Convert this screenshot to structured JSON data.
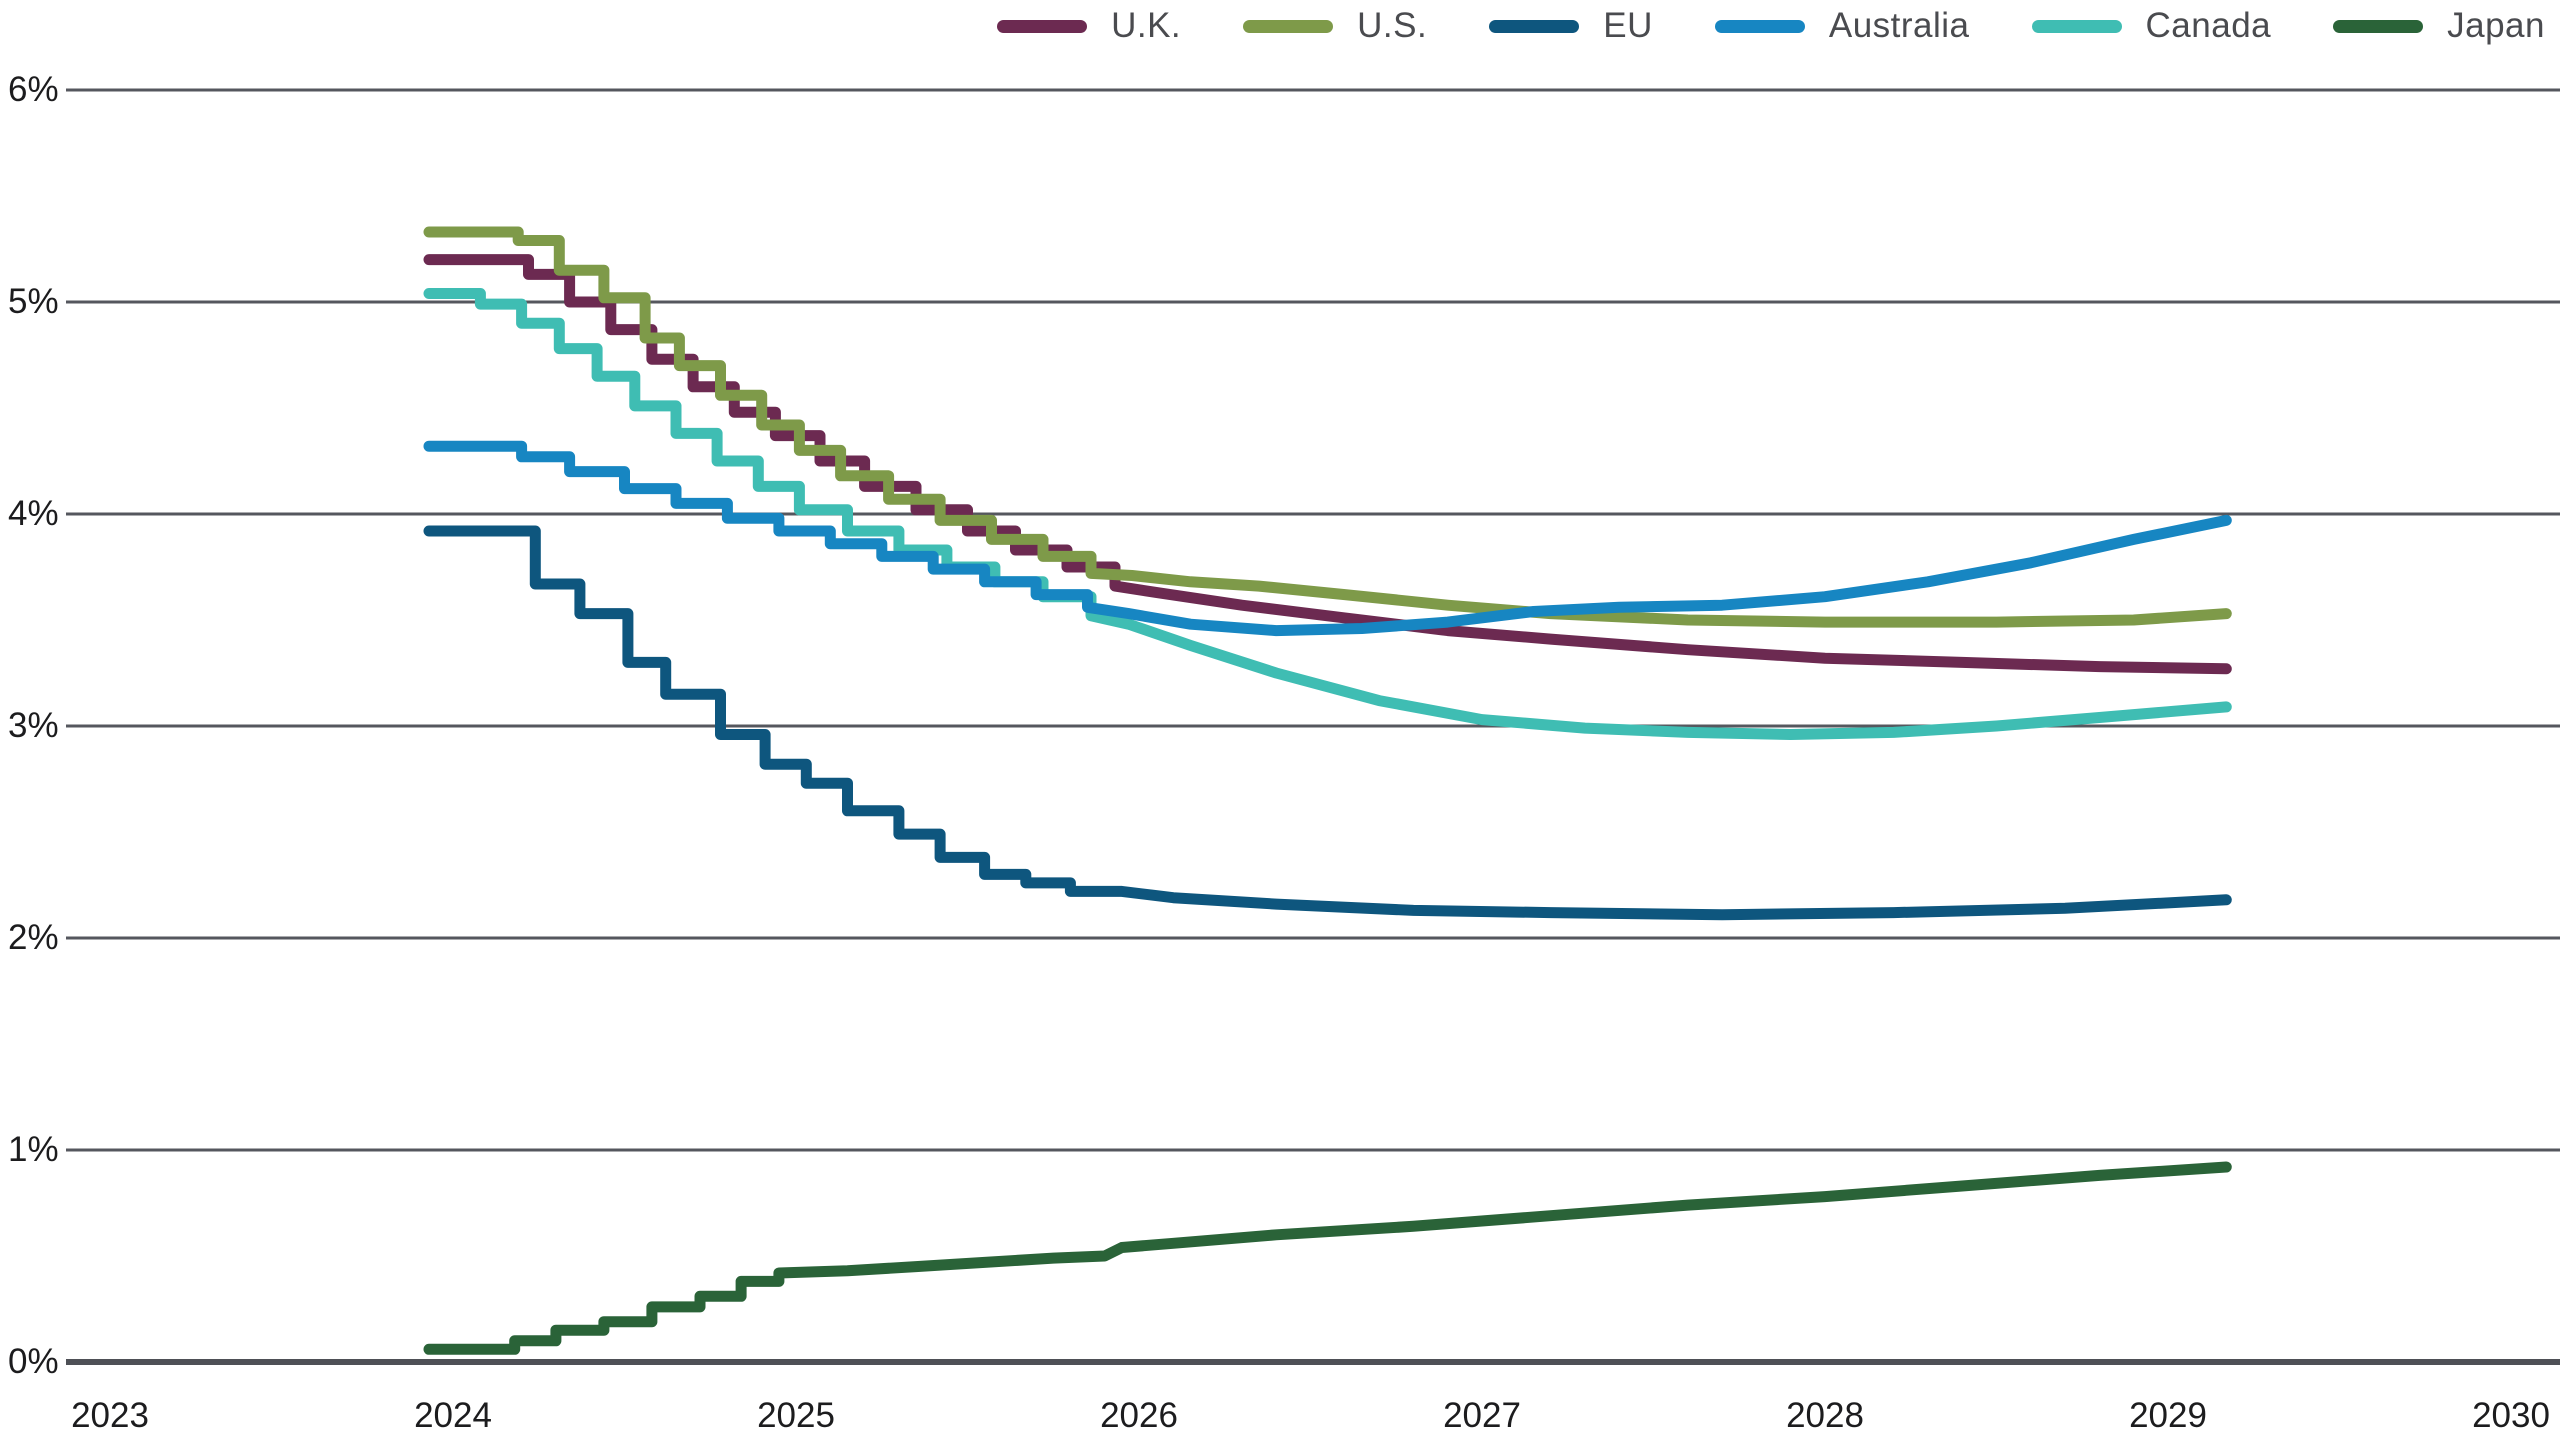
{
  "legend": {
    "items": [
      {
        "label": "U.K.",
        "color": "#6C2A51"
      },
      {
        "label": "U.S.",
        "color": "#7E9A49"
      },
      {
        "label": "EU",
        "color": "#0E567E"
      },
      {
        "label": "Australia",
        "color": "#1786C2"
      },
      {
        "label": "Canada",
        "color": "#3FBDB3"
      },
      {
        "label": "Japan",
        "color": "#2A6338"
      }
    ]
  },
  "y_axis": {
    "unit": "%",
    "ticks": [
      {
        "label": "6%",
        "value": 6
      },
      {
        "label": "5%",
        "value": 5
      },
      {
        "label": "4%",
        "value": 4
      },
      {
        "label": "3%",
        "value": 3
      },
      {
        "label": "2%",
        "value": 2
      },
      {
        "label": "1%",
        "value": 1
      },
      {
        "label": "0%",
        "value": 0
      }
    ]
  },
  "x_axis": {
    "ticks": [
      {
        "label": "2023",
        "year": 2023
      },
      {
        "label": "2024",
        "year": 2024
      },
      {
        "label": "2025",
        "year": 2025
      },
      {
        "label": "2026",
        "year": 2026
      },
      {
        "label": "2027",
        "year": 2027
      },
      {
        "label": "2028",
        "year": 2028
      },
      {
        "label": "2029",
        "year": 2029
      },
      {
        "label": "2030",
        "year": 2030
      }
    ]
  },
  "chart_data": {
    "type": "line",
    "title": "",
    "xlabel": "",
    "ylabel": "",
    "x_range": [
      2023,
      2030.14
    ],
    "ylim": [
      0,
      6
    ],
    "y_unit": "%",
    "grid": "horizontal",
    "legend_position": "top-right",
    "line_style_note": "stepped forward curves through ~2026, smooth thereafter",
    "grid_color": "#55575E",
    "axis_line_color": "#4E5056",
    "series": [
      {
        "name": "U.K.",
        "color": "#6C2A51",
        "points": [
          [
            2023.93,
            5.2
          ],
          [
            2024.22,
            5.2
          ],
          [
            2024.22,
            5.13
          ],
          [
            2024.34,
            5.13
          ],
          [
            2024.34,
            5.0
          ],
          [
            2024.46,
            5.0
          ],
          [
            2024.46,
            4.87
          ],
          [
            2024.58,
            4.87
          ],
          [
            2024.58,
            4.73
          ],
          [
            2024.7,
            4.73
          ],
          [
            2024.7,
            4.6
          ],
          [
            2024.82,
            4.6
          ],
          [
            2024.82,
            4.48
          ],
          [
            2024.94,
            4.48
          ],
          [
            2024.94,
            4.37
          ],
          [
            2025.07,
            4.37
          ],
          [
            2025.07,
            4.25
          ],
          [
            2025.2,
            4.25
          ],
          [
            2025.2,
            4.13
          ],
          [
            2025.35,
            4.13
          ],
          [
            2025.35,
            4.02
          ],
          [
            2025.5,
            4.02
          ],
          [
            2025.5,
            3.92
          ],
          [
            2025.64,
            3.92
          ],
          [
            2025.64,
            3.83
          ],
          [
            2025.79,
            3.83
          ],
          [
            2025.79,
            3.75
          ],
          [
            2025.93,
            3.75
          ],
          [
            2025.93,
            3.66
          ],
          [
            2026.05,
            3.63
          ],
          [
            2026.3,
            3.57
          ],
          [
            2026.6,
            3.51
          ],
          [
            2026.9,
            3.45
          ],
          [
            2027.2,
            3.41
          ],
          [
            2027.6,
            3.36
          ],
          [
            2028.0,
            3.32
          ],
          [
            2028.4,
            3.3
          ],
          [
            2028.8,
            3.28
          ],
          [
            2029.17,
            3.27
          ]
        ]
      },
      {
        "name": "U.S.",
        "color": "#7E9A49",
        "points": [
          [
            2023.93,
            5.33
          ],
          [
            2024.19,
            5.33
          ],
          [
            2024.19,
            5.29
          ],
          [
            2024.31,
            5.29
          ],
          [
            2024.31,
            5.15
          ],
          [
            2024.44,
            5.15
          ],
          [
            2024.44,
            5.02
          ],
          [
            2024.56,
            5.02
          ],
          [
            2024.56,
            4.83
          ],
          [
            2024.66,
            4.83
          ],
          [
            2024.66,
            4.7
          ],
          [
            2024.78,
            4.7
          ],
          [
            2024.78,
            4.56
          ],
          [
            2024.9,
            4.56
          ],
          [
            2024.9,
            4.42
          ],
          [
            2025.01,
            4.42
          ],
          [
            2025.01,
            4.3
          ],
          [
            2025.13,
            4.3
          ],
          [
            2025.13,
            4.18
          ],
          [
            2025.27,
            4.18
          ],
          [
            2025.27,
            4.07
          ],
          [
            2025.42,
            4.07
          ],
          [
            2025.42,
            3.97
          ],
          [
            2025.57,
            3.97
          ],
          [
            2025.57,
            3.88
          ],
          [
            2025.72,
            3.88
          ],
          [
            2025.72,
            3.8
          ],
          [
            2025.86,
            3.8
          ],
          [
            2025.86,
            3.72
          ],
          [
            2025.98,
            3.71
          ],
          [
            2026.15,
            3.68
          ],
          [
            2026.35,
            3.66
          ],
          [
            2026.6,
            3.62
          ],
          [
            2026.9,
            3.57
          ],
          [
            2027.2,
            3.53
          ],
          [
            2027.6,
            3.5
          ],
          [
            2028.0,
            3.49
          ],
          [
            2028.5,
            3.49
          ],
          [
            2028.9,
            3.5
          ],
          [
            2029.17,
            3.53
          ]
        ]
      },
      {
        "name": "EU",
        "color": "#0E567E",
        "points": [
          [
            2023.93,
            3.92
          ],
          [
            2024.24,
            3.92
          ],
          [
            2024.24,
            3.67
          ],
          [
            2024.37,
            3.67
          ],
          [
            2024.37,
            3.53
          ],
          [
            2024.51,
            3.53
          ],
          [
            2024.51,
            3.3
          ],
          [
            2024.62,
            3.3
          ],
          [
            2024.62,
            3.15
          ],
          [
            2024.78,
            3.15
          ],
          [
            2024.78,
            2.96
          ],
          [
            2024.91,
            2.96
          ],
          [
            2024.91,
            2.82
          ],
          [
            2025.03,
            2.82
          ],
          [
            2025.03,
            2.73
          ],
          [
            2025.15,
            2.73
          ],
          [
            2025.15,
            2.6
          ],
          [
            2025.3,
            2.6
          ],
          [
            2025.3,
            2.49
          ],
          [
            2025.42,
            2.49
          ],
          [
            2025.42,
            2.38
          ],
          [
            2025.55,
            2.38
          ],
          [
            2025.55,
            2.3
          ],
          [
            2025.67,
            2.3
          ],
          [
            2025.67,
            2.26
          ],
          [
            2025.8,
            2.26
          ],
          [
            2025.8,
            2.22
          ],
          [
            2025.95,
            2.22
          ],
          [
            2026.1,
            2.19
          ],
          [
            2026.4,
            2.16
          ],
          [
            2026.8,
            2.13
          ],
          [
            2027.2,
            2.12
          ],
          [
            2027.7,
            2.11
          ],
          [
            2028.2,
            2.12
          ],
          [
            2028.7,
            2.14
          ],
          [
            2029.17,
            2.18
          ]
        ]
      },
      {
        "name": "Australia",
        "color": "#1786C2",
        "points": [
          [
            2023.93,
            4.32
          ],
          [
            2024.2,
            4.32
          ],
          [
            2024.2,
            4.27
          ],
          [
            2024.34,
            4.27
          ],
          [
            2024.34,
            4.2
          ],
          [
            2024.5,
            4.2
          ],
          [
            2024.5,
            4.12
          ],
          [
            2024.65,
            4.12
          ],
          [
            2024.65,
            4.05
          ],
          [
            2024.8,
            4.05
          ],
          [
            2024.8,
            3.98
          ],
          [
            2024.95,
            3.98
          ],
          [
            2024.95,
            3.92
          ],
          [
            2025.1,
            3.92
          ],
          [
            2025.1,
            3.86
          ],
          [
            2025.25,
            3.86
          ],
          [
            2025.25,
            3.8
          ],
          [
            2025.4,
            3.8
          ],
          [
            2025.4,
            3.74
          ],
          [
            2025.55,
            3.74
          ],
          [
            2025.55,
            3.68
          ],
          [
            2025.7,
            3.68
          ],
          [
            2025.7,
            3.62
          ],
          [
            2025.85,
            3.62
          ],
          [
            2025.85,
            3.56
          ],
          [
            2025.97,
            3.53
          ],
          [
            2026.15,
            3.48
          ],
          [
            2026.4,
            3.45
          ],
          [
            2026.65,
            3.46
          ],
          [
            2026.9,
            3.49
          ],
          [
            2027.15,
            3.54
          ],
          [
            2027.4,
            3.56
          ],
          [
            2027.7,
            3.57
          ],
          [
            2028.0,
            3.61
          ],
          [
            2028.3,
            3.68
          ],
          [
            2028.6,
            3.77
          ],
          [
            2028.9,
            3.88
          ],
          [
            2029.17,
            3.97
          ]
        ]
      },
      {
        "name": "Canada",
        "color": "#3FBDB3",
        "points": [
          [
            2023.93,
            5.04
          ],
          [
            2024.08,
            5.04
          ],
          [
            2024.08,
            4.99
          ],
          [
            2024.2,
            4.99
          ],
          [
            2024.2,
            4.9
          ],
          [
            2024.31,
            4.9
          ],
          [
            2024.31,
            4.78
          ],
          [
            2024.42,
            4.78
          ],
          [
            2024.42,
            4.65
          ],
          [
            2024.53,
            4.65
          ],
          [
            2024.53,
            4.51
          ],
          [
            2024.65,
            4.51
          ],
          [
            2024.65,
            4.38
          ],
          [
            2024.77,
            4.38
          ],
          [
            2024.77,
            4.25
          ],
          [
            2024.89,
            4.25
          ],
          [
            2024.89,
            4.13
          ],
          [
            2025.01,
            4.13
          ],
          [
            2025.01,
            4.02
          ],
          [
            2025.15,
            4.02
          ],
          [
            2025.15,
            3.92
          ],
          [
            2025.3,
            3.92
          ],
          [
            2025.3,
            3.83
          ],
          [
            2025.44,
            3.83
          ],
          [
            2025.44,
            3.75
          ],
          [
            2025.58,
            3.75
          ],
          [
            2025.58,
            3.68
          ],
          [
            2025.72,
            3.68
          ],
          [
            2025.72,
            3.61
          ],
          [
            2025.86,
            3.61
          ],
          [
            2025.86,
            3.52
          ],
          [
            2025.97,
            3.48
          ],
          [
            2026.15,
            3.38
          ],
          [
            2026.4,
            3.25
          ],
          [
            2026.7,
            3.12
          ],
          [
            2027.0,
            3.03
          ],
          [
            2027.3,
            2.99
          ],
          [
            2027.6,
            2.97
          ],
          [
            2027.9,
            2.96
          ],
          [
            2028.2,
            2.97
          ],
          [
            2028.5,
            3.0
          ],
          [
            2028.8,
            3.04
          ],
          [
            2029.17,
            3.09
          ]
        ]
      },
      {
        "name": "Japan",
        "color": "#2A6338",
        "points": [
          [
            2023.93,
            0.06
          ],
          [
            2024.18,
            0.06
          ],
          [
            2024.18,
            0.1
          ],
          [
            2024.3,
            0.1
          ],
          [
            2024.3,
            0.15
          ],
          [
            2024.44,
            0.15
          ],
          [
            2024.44,
            0.19
          ],
          [
            2024.58,
            0.19
          ],
          [
            2024.58,
            0.26
          ],
          [
            2024.72,
            0.26
          ],
          [
            2024.72,
            0.31
          ],
          [
            2024.84,
            0.31
          ],
          [
            2024.84,
            0.38
          ],
          [
            2024.95,
            0.38
          ],
          [
            2024.95,
            0.42
          ],
          [
            2025.15,
            0.43
          ],
          [
            2025.35,
            0.45
          ],
          [
            2025.55,
            0.47
          ],
          [
            2025.75,
            0.49
          ],
          [
            2025.9,
            0.5
          ],
          [
            2025.95,
            0.54
          ],
          [
            2026.1,
            0.56
          ],
          [
            2026.4,
            0.6
          ],
          [
            2026.8,
            0.64
          ],
          [
            2027.2,
            0.69
          ],
          [
            2027.6,
            0.74
          ],
          [
            2028.0,
            0.78
          ],
          [
            2028.4,
            0.83
          ],
          [
            2028.8,
            0.88
          ],
          [
            2029.17,
            0.92
          ]
        ]
      }
    ]
  }
}
